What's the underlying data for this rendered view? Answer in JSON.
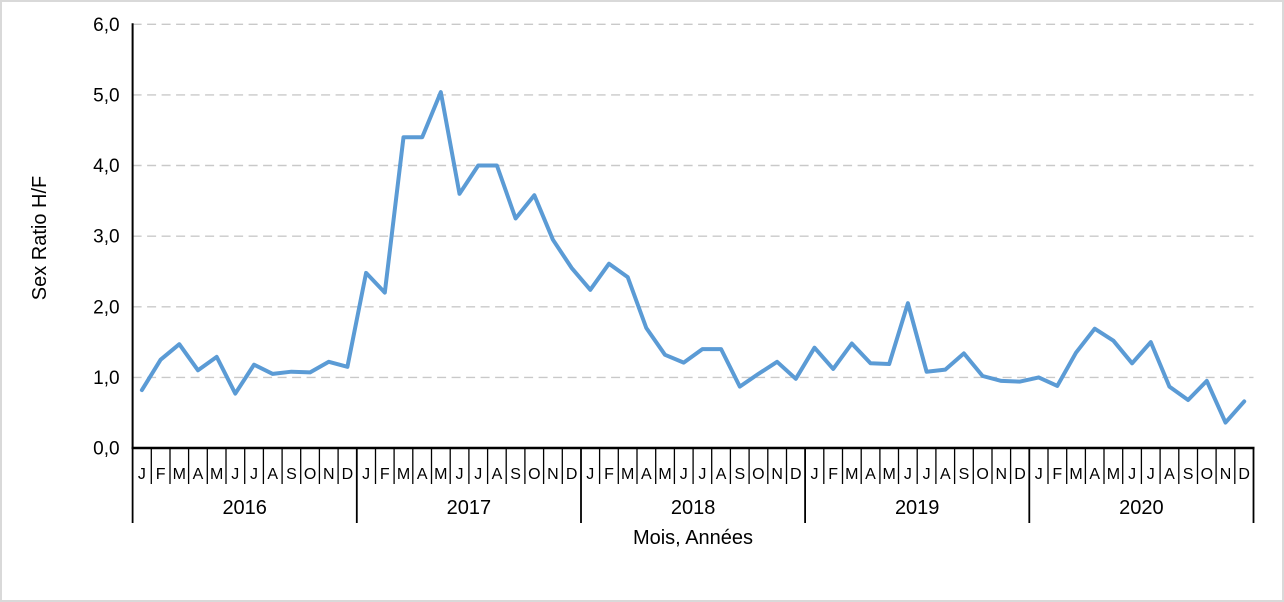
{
  "figure": {
    "background": "#ffffff",
    "border_color": "#d9d9d9"
  },
  "chart_data": {
    "type": "line",
    "title": "",
    "xlabel": "Mois, Années",
    "ylabel": "Sex Ratio H/F",
    "ylim": [
      0,
      6
    ],
    "ytick_step": 1,
    "ytick_labels": [
      "0,0",
      "1,0",
      "2,0",
      "3,0",
      "4,0",
      "5,0",
      "6,0"
    ],
    "grid": "horizontal-dashed",
    "grid_color": "#c9c9c9",
    "axis_color": "#000000",
    "legend": "none",
    "month_letters": [
      "J",
      "F",
      "M",
      "A",
      "M",
      "J",
      "J",
      "A",
      "S",
      "O",
      "N",
      "D"
    ],
    "years": [
      "2016",
      "2017",
      "2018",
      "2019",
      "2020"
    ],
    "series": [
      {
        "name": "Sex Ratio H/F",
        "color": "#5B9BD5",
        "values": [
          0.82,
          1.25,
          1.47,
          1.1,
          1.29,
          0.77,
          1.18,
          1.05,
          1.08,
          1.07,
          1.22,
          1.15,
          2.48,
          2.2,
          4.4,
          4.4,
          5.04,
          3.6,
          4.0,
          4.0,
          3.25,
          3.58,
          2.95,
          2.55,
          2.24,
          2.61,
          2.42,
          1.7,
          1.32,
          1.21,
          1.4,
          1.4,
          0.87,
          1.05,
          1.22,
          0.98,
          1.42,
          1.12,
          1.48,
          1.2,
          1.19,
          2.05,
          1.08,
          1.11,
          1.34,
          1.02,
          0.95,
          0.94,
          1.0,
          0.88,
          1.35,
          1.69,
          1.52,
          1.2,
          1.5,
          0.87,
          0.68,
          0.95,
          0.36,
          0.66
        ]
      }
    ]
  }
}
